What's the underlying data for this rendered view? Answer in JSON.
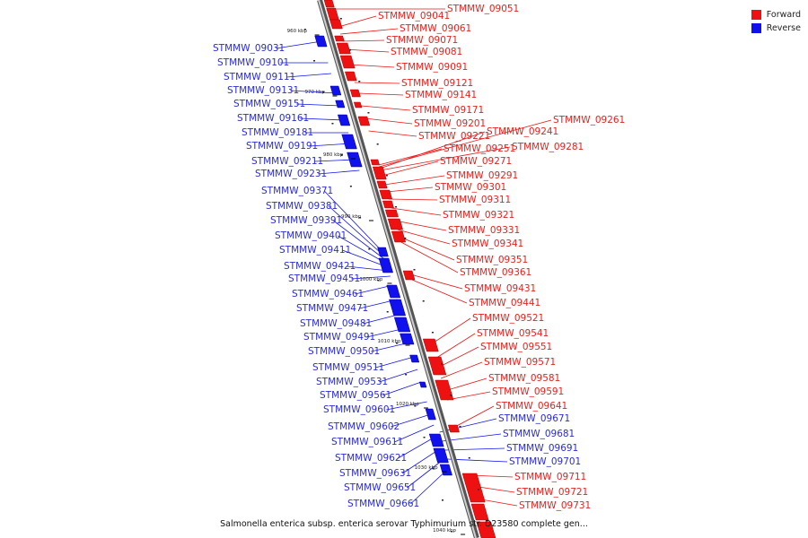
{
  "caption": "Salmonella enterica subsp. enterica serovar Typhimurium str. D23580 complete gen...",
  "legend": {
    "forward": {
      "label": "Forward",
      "color": "#ee1111"
    },
    "reverse": {
      "label": "Reverse",
      "color": "#1111ee"
    }
  },
  "ticks": [
    "960 kbp",
    "970 kbp",
    "980 kbp",
    "990 kbp",
    "1000 kbp",
    "1010 kbp",
    "1020 kbp",
    "1030 kbp",
    "1040 kbp"
  ],
  "forward_labels": [
    "STMMW_09051",
    "STMMW_09041",
    "STMMW_09061",
    "STMMW_09071",
    "STMMW_09081",
    "STMMW_09091",
    "STMMW_09121",
    "STMMW_09141",
    "STMMW_09171",
    "STMMW_09261",
    "STMMW_09201",
    "STMMW_09241",
    "STMMW_09221",
    "STMMW_09281",
    "STMMW_09251",
    "STMMW_09271",
    "STMMW_09291",
    "STMMW_09301",
    "STMMW_09311",
    "STMMW_09321",
    "STMMW_09331",
    "STMMW_09341",
    "STMMW_09351",
    "STMMW_09361",
    "STMMW_09431",
    "STMMW_09441",
    "STMMW_09521",
    "STMMW_09541",
    "STMMW_09551",
    "STMMW_09571",
    "STMMW_09581",
    "STMMW_09591",
    "STMMW_09641",
    "STMMW_09711",
    "STMMW_09721",
    "STMMW_09731"
  ],
  "reverse_labels": [
    "STMMW_09031",
    "STMMW_09101",
    "STMMW_09111",
    "STMMW_09131",
    "STMMW_09151",
    "STMMW_09161",
    "STMMW_09181",
    "STMMW_09191",
    "STMMW_09211",
    "STMMW_09231",
    "STMMW_09371",
    "STMMW_09381",
    "STMMW_09391",
    "STMMW_09401",
    "STMMW_09411",
    "STMMW_09421",
    "STMMW_09451",
    "STMMW_09461",
    "STMMW_09471",
    "STMMW_09481",
    "STMMW_09491",
    "STMMW_09501",
    "STMMW_09511",
    "STMMW_09531",
    "STMMW_09561",
    "STMMW_09601",
    "STMMW_09602",
    "STMMW_09611",
    "STMMW_09621",
    "STMMW_09631",
    "STMMW_09651",
    "STMMW_09661"
  ],
  "inner_labels": [
    "STMMW_09671",
    "STMMW_09681",
    "STMMW_09691",
    "STMMW_09701"
  ]
}
